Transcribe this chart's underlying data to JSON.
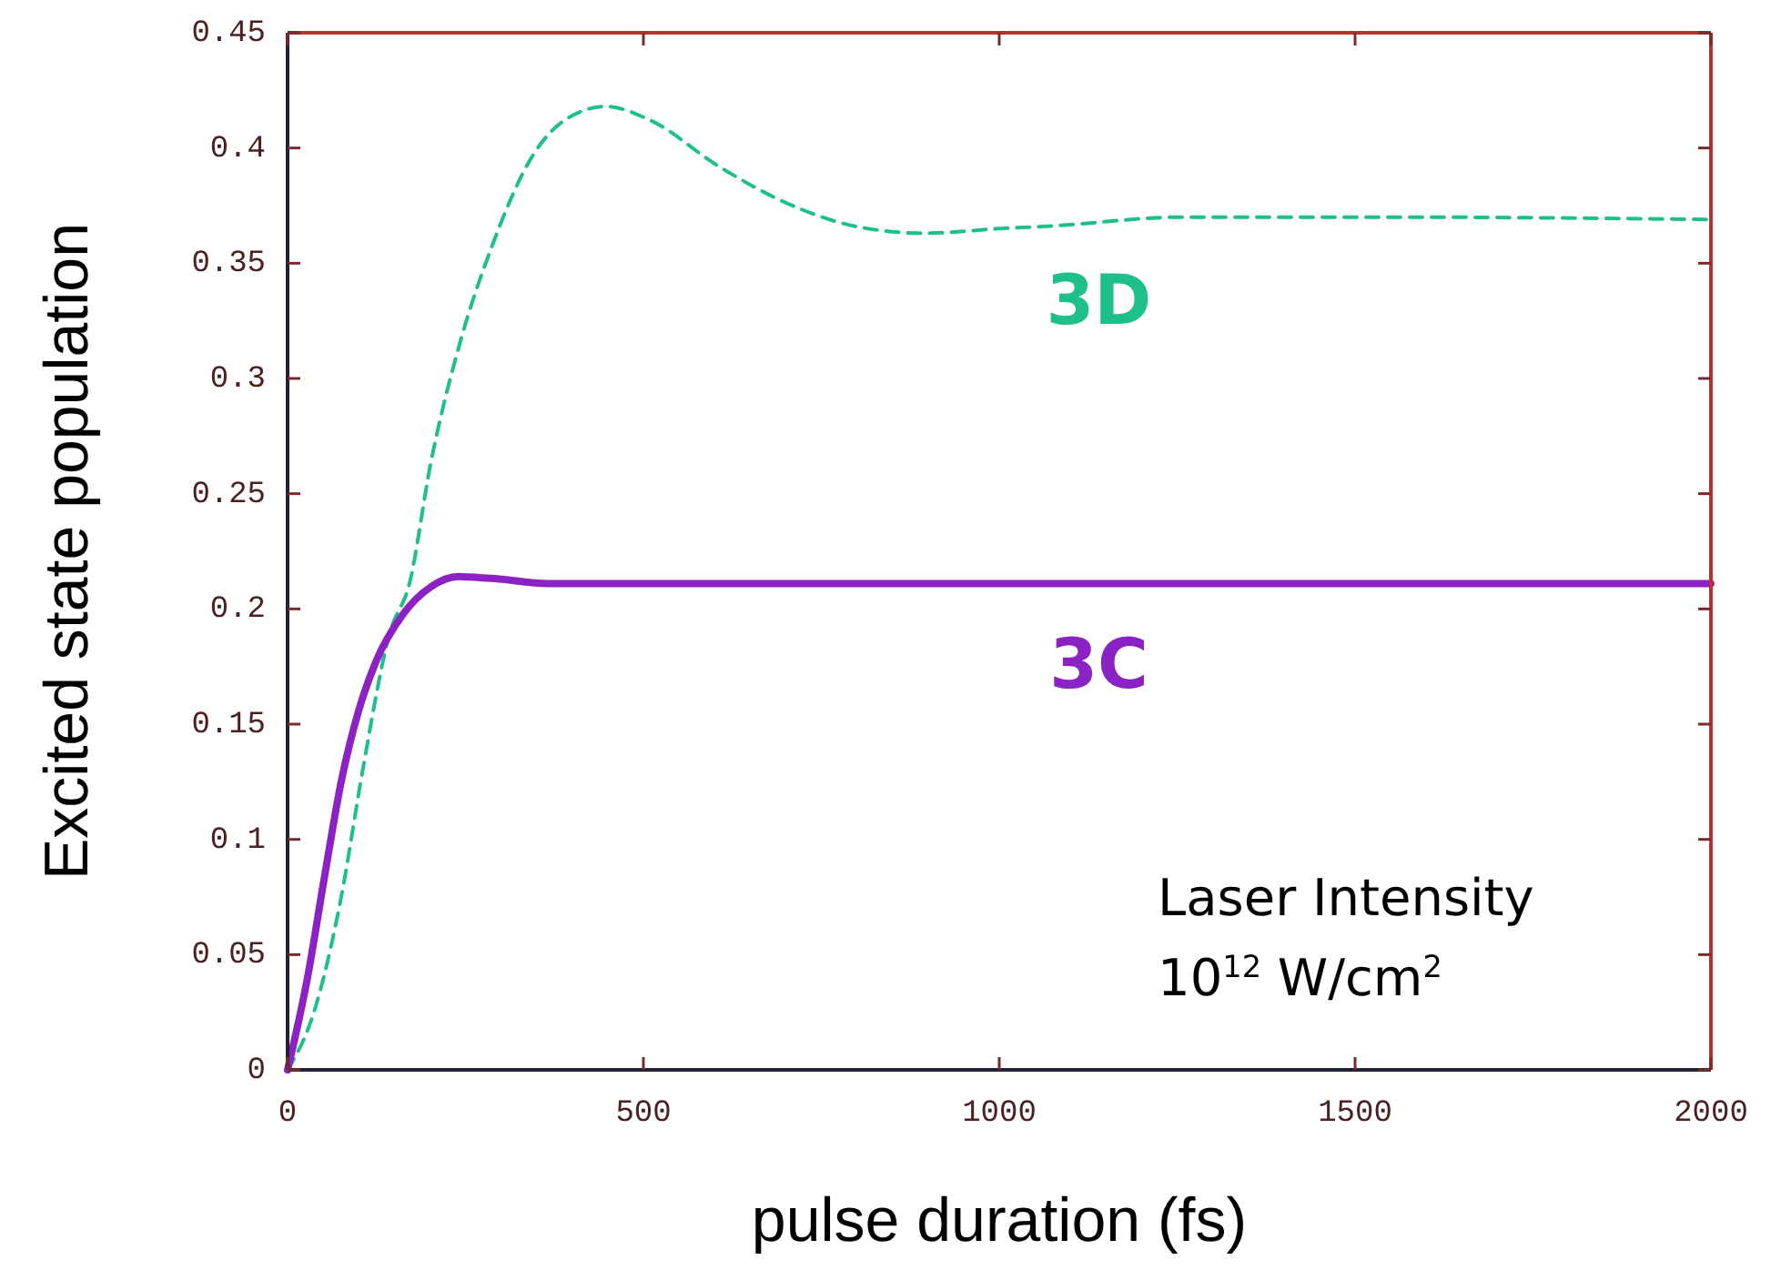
{
  "chart_data": {
    "type": "line",
    "xlabel": "pulse duration (fs)",
    "ylabel": "Excited state population",
    "xlim": [
      0,
      2000
    ],
    "ylim": [
      0,
      0.45
    ],
    "xticks": [
      0,
      500,
      1000,
      1500,
      2000
    ],
    "yticks": [
      0,
      0.05,
      0.1,
      0.15,
      0.2,
      0.25,
      0.3,
      0.35,
      0.4,
      0.45
    ],
    "grid": false,
    "series": [
      {
        "name": "3D",
        "color": "#1fbf8a",
        "line_style": "dashed",
        "x": [
          0,
          37,
          76,
          105,
          143,
          172,
          201,
          240,
          288,
          345,
          394,
          447,
          510,
          606,
          702,
          798,
          895,
          1000,
          1066,
          1258,
          1546,
          2000
        ],
        "values": [
          0,
          0.025,
          0.076,
          0.129,
          0.189,
          0.212,
          0.263,
          0.313,
          0.358,
          0.397,
          0.413,
          0.418,
          0.412,
          0.392,
          0.376,
          0.366,
          0.363,
          0.365,
          0.366,
          0.37,
          0.37,
          0.369
        ]
      },
      {
        "name": "3C",
        "color": "#8a22c4",
        "line_style": "solid",
        "x": [
          0,
          28,
          52,
          76,
          100,
          124,
          163,
          201,
          240,
          297,
          365,
          1000,
          2000
        ],
        "values": [
          0,
          0.04,
          0.084,
          0.126,
          0.156,
          0.177,
          0.198,
          0.2095,
          0.214,
          0.213,
          0.211,
          0.211,
          0.211
        ]
      }
    ],
    "annotations": [
      "Laser Intensity",
      "10$^{12}$ W/cm$^{2}$"
    ]
  }
}
